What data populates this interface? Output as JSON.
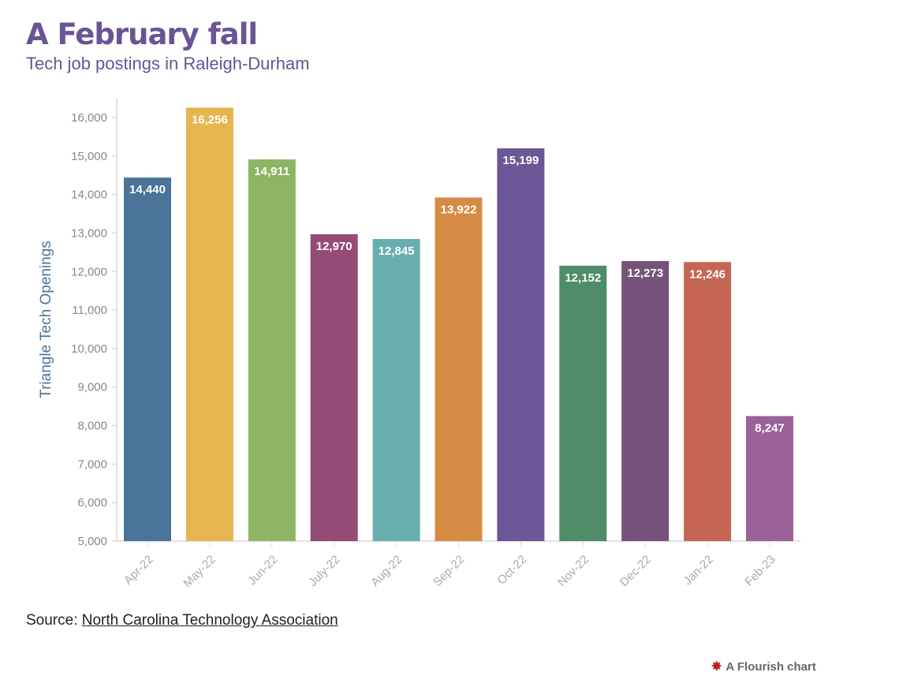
{
  "chart_data": {
    "type": "bar",
    "title": "A February fall",
    "subtitle": "Tech job postings in Raleigh-Durham",
    "ylabel": "Triangle Tech Openings",
    "xlabel": "",
    "ylim": [
      5000,
      16500
    ],
    "yticks": [
      5000,
      6000,
      7000,
      8000,
      9000,
      10000,
      11000,
      12000,
      13000,
      14000,
      15000,
      16000
    ],
    "categories": [
      "Apr-22",
      "May-22",
      "Jun-22",
      "July-22",
      "Aug-22",
      "Sep-22",
      "Oct-22",
      "Nov-22",
      "Dec-22",
      "Jan-22",
      "Feb-23"
    ],
    "values": [
      14440,
      16256,
      14911,
      12970,
      12845,
      13922,
      15199,
      12152,
      12273,
      12246,
      8247
    ],
    "data_labels": [
      "14,440",
      "16,256",
      "14,911",
      "12,970",
      "12,845",
      "13,922",
      "15,199",
      "12,152",
      "12,273",
      "12,246",
      "8,247"
    ],
    "colors": [
      "#4a7499",
      "#e6b54f",
      "#8db564",
      "#944c77",
      "#67aeae",
      "#d68b45",
      "#6b5797",
      "#4e8d68",
      "#76537a",
      "#c46653",
      "#9a6299"
    ],
    "grid": false
  },
  "footer": {
    "source_prefix": "Source: ",
    "source_link": "North Carolina Technology Association",
    "credit": "A Flourish chart"
  }
}
